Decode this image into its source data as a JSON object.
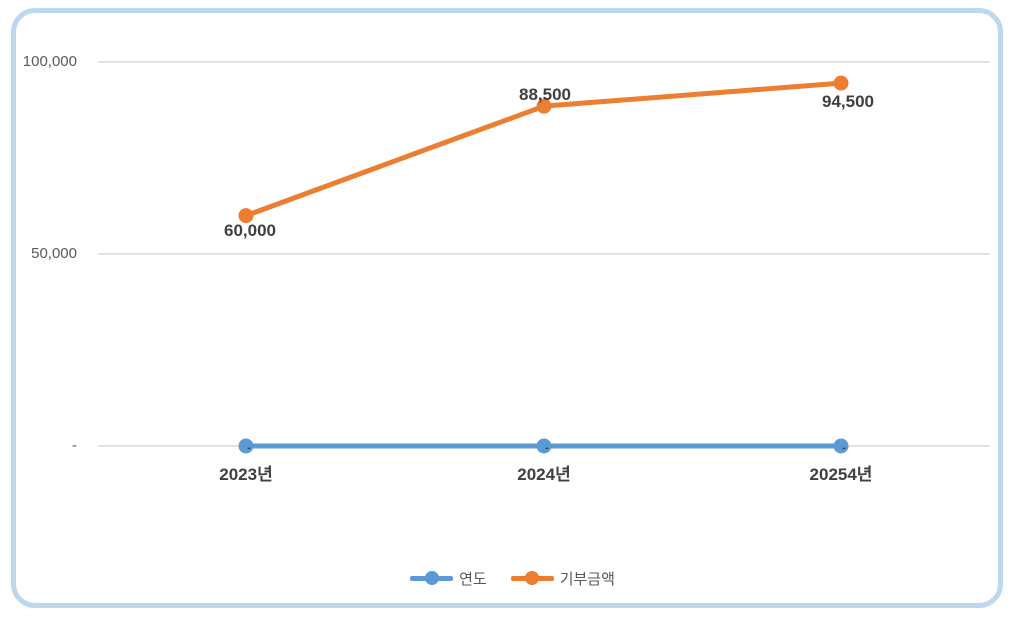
{
  "chart_data": {
    "type": "line",
    "title": "",
    "categories": [
      "2023년",
      "2024년",
      "20254년"
    ],
    "series": [
      {
        "name": "연도",
        "color": "#5B9BD5",
        "values": [
          0,
          0,
          0
        ],
        "data_labels": [
          "-",
          "-",
          "-"
        ],
        "marker": "circle"
      },
      {
        "name": "기부금액",
        "color": "#ED7D31",
        "values": [
          60000,
          88500,
          94500
        ],
        "data_labels": [
          "60,000",
          "88,500",
          "94,500"
        ],
        "marker": "circle"
      }
    ],
    "y_axis": {
      "min": 0,
      "max": 100000,
      "tick_interval": 50000,
      "ticks": [
        {
          "value": 100000,
          "label": "100,000"
        },
        {
          "value": 50000,
          "label": "50,000"
        },
        {
          "value": 0,
          "label": "-"
        }
      ]
    },
    "x_axis": {
      "labels": [
        "2023년",
        "2024년",
        "20254년"
      ]
    },
    "legend": {
      "position": "bottom",
      "entries": [
        "연도",
        "기부금액"
      ]
    },
    "grid": "horizontal",
    "colors": {
      "gridline": "#D9D9D9",
      "axis_text": "#595959",
      "label_text": "#404040",
      "border": "#BDD7EE",
      "background": "#FFFFFF"
    }
  }
}
